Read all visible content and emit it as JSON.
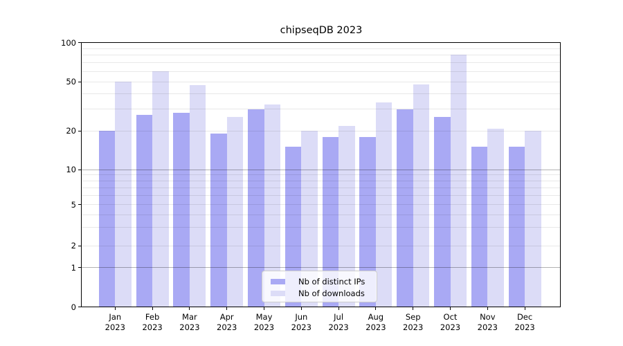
{
  "chart_data": {
    "type": "bar",
    "title": "chipseqDB 2023",
    "categories": [
      "Jan",
      "Feb",
      "Mar",
      "Apr",
      "May",
      "Jun",
      "Jul",
      "Aug",
      "Sep",
      "Oct",
      "Nov",
      "Dec"
    ],
    "x_tick_second_line": "2023",
    "series": [
      {
        "name": "Nb of distinct IPs",
        "color": "#a9a9f4",
        "values": [
          20,
          27,
          28,
          19,
          30,
          15,
          18,
          18,
          30,
          26,
          15,
          15
        ]
      },
      {
        "name": "Nb of downloads",
        "color": "#dcdcf7",
        "values": [
          50,
          60,
          47,
          26,
          33,
          20,
          22,
          34,
          48,
          81,
          21,
          20
        ]
      }
    ],
    "y_axis": {
      "scale": "symlog",
      "range": [
        0,
        100
      ],
      "tick_values": [
        0,
        1,
        2,
        5,
        10,
        20,
        50,
        100
      ],
      "tick_labels": [
        "0",
        "1",
        "2",
        "5",
        "10",
        "20",
        "50",
        "100"
      ],
      "major_grid_values": [
        1,
        10
      ],
      "minor_grid_values": [
        2,
        3,
        4,
        5,
        6,
        7,
        8,
        9,
        20,
        30,
        40,
        50,
        60,
        70,
        80,
        90
      ],
      "grid": "on"
    },
    "legend": {
      "position": "lower center",
      "entries": [
        "Nb of distinct IPs",
        "Nb of downloads"
      ]
    }
  }
}
